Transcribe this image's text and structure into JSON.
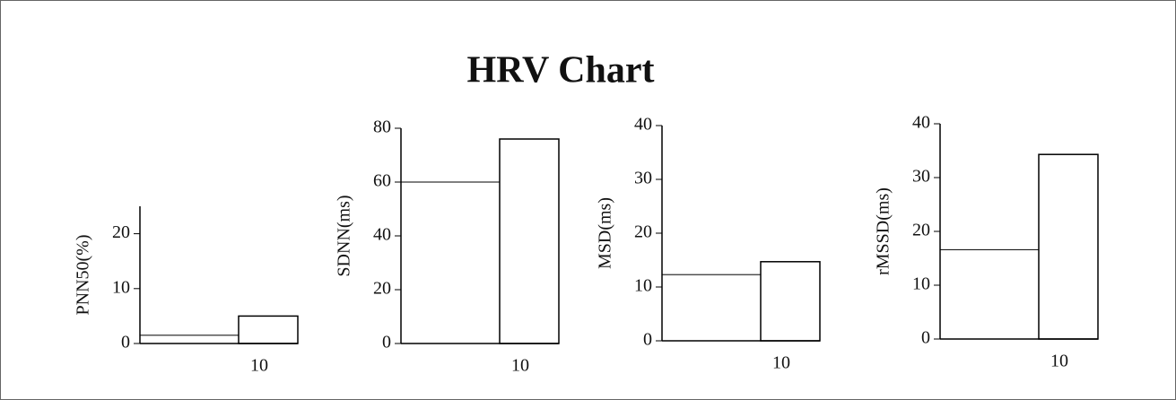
{
  "title": "HRV Chart",
  "chart_data": [
    {
      "type": "bar",
      "ylabel": "PNN50(%)",
      "categories": [
        null,
        "10"
      ],
      "values": [
        1.5,
        5
      ],
      "fill": "#ffffff",
      "edgecolor": "#000000",
      "ylim": [
        0,
        25
      ],
      "yticks": [
        0,
        10,
        20
      ]
    },
    {
      "type": "bar",
      "ylabel": "SDNN(ms)",
      "categories": [
        null,
        "10"
      ],
      "values": [
        60,
        76
      ],
      "fill": "#ffffff",
      "edgecolor": "#000000",
      "ylim": [
        0,
        80
      ],
      "yticks": [
        0,
        20,
        40,
        60,
        80
      ]
    },
    {
      "type": "bar",
      "ylabel": "MSD(ms)",
      "categories": [
        null,
        "10"
      ],
      "values": [
        12.3,
        14.7
      ],
      "fill": "#ffffff",
      "edgecolor": "#000000",
      "ylim": [
        0,
        40
      ],
      "yticks": [
        0,
        10,
        20,
        30,
        40
      ]
    },
    {
      "type": "bar",
      "ylabel": "rMSSD(ms)",
      "categories": [
        null,
        "10"
      ],
      "values": [
        16.6,
        34.3
      ],
      "fill": "#ffffff",
      "edgecolor": "#000000",
      "ylim": [
        0,
        40
      ],
      "yticks": [
        0,
        10,
        20,
        30,
        40
      ]
    }
  ]
}
